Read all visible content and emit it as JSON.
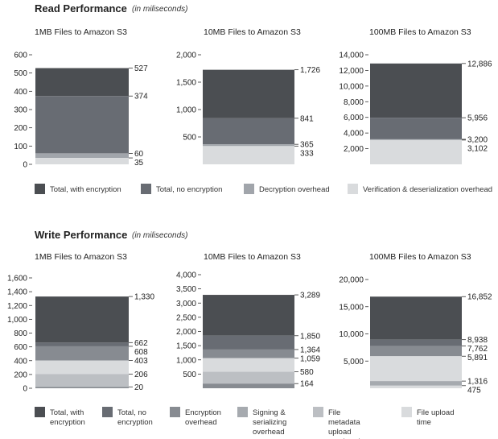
{
  "read": {
    "title": "Read Performance",
    "note": "(in miliseconds)",
    "legend": [
      {
        "label": "Total, with encryption",
        "color": "#4b4e52"
      },
      {
        "label": "Total, no encryption",
        "color": "#686c73"
      },
      {
        "label": "Decryption overhead",
        "color": "#a1a5ab"
      },
      {
        "label": "Verification & deserialization overhead",
        "color": "#d9dbdd"
      }
    ]
  },
  "write": {
    "title": "Write Performance",
    "note": "(in miliseconds)",
    "legend": [
      {
        "label": "Total, with encryption",
        "color": "#4b4e52"
      },
      {
        "label": "Total, no encryption",
        "color": "#686c73"
      },
      {
        "label": "Encryption overhead",
        "color": "#878b91"
      },
      {
        "label": "Signing & serializing overhead",
        "color": "#a6aaaf"
      },
      {
        "label": "File metadata upload overhead",
        "color": "#bcbfc3"
      },
      {
        "label": "File upload time",
        "color": "#d9dbdd"
      }
    ]
  },
  "chart_data": [
    {
      "type": "bar",
      "title": "1MB Files to Amazon S3",
      "group": "read",
      "ylim": [
        0,
        600
      ],
      "yticks": [
        0,
        100,
        200,
        300,
        400,
        500,
        600
      ],
      "ytick_labels": [
        "0",
        "100",
        "200",
        "300",
        "400",
        "500",
        "600"
      ],
      "bands": [
        {
          "series": "Total, with encryption",
          "from": 374,
          "to": 527,
          "color": "#4b4e52"
        },
        {
          "series": "Total, no encryption",
          "from": 60,
          "to": 374,
          "color": "#686c73"
        },
        {
          "series": "Decryption overhead",
          "from": 35,
          "to": 60,
          "color": "#a1a5ab"
        },
        {
          "series": "Verification & deserialization overhead",
          "from": 0,
          "to": 35,
          "color": "#d9dbdd"
        }
      ],
      "value_labels": [
        {
          "value": 527,
          "text": "527"
        },
        {
          "value": 374,
          "text": "374"
        },
        {
          "value": 60,
          "text": "60"
        },
        {
          "value": 35,
          "text": "35"
        }
      ]
    },
    {
      "type": "bar",
      "title": "10MB Files to Amazon S3",
      "group": "read",
      "ylim": [
        0,
        2000
      ],
      "yticks": [
        500,
        1000,
        1500,
        2000
      ],
      "ytick_labels": [
        "500",
        "1,000",
        "1,500",
        "2,000"
      ],
      "bands": [
        {
          "series": "Total, with encryption",
          "from": 841,
          "to": 1726,
          "color": "#4b4e52"
        },
        {
          "series": "Total, no encryption",
          "from": 365,
          "to": 841,
          "color": "#686c73"
        },
        {
          "series": "Decryption overhead",
          "from": 333,
          "to": 365,
          "color": "#a1a5ab"
        },
        {
          "series": "Verification & deserialization overhead",
          "from": 0,
          "to": 333,
          "color": "#d9dbdd"
        }
      ],
      "value_labels": [
        {
          "value": 1726,
          "text": "1,726"
        },
        {
          "value": 841,
          "text": "841"
        },
        {
          "value": 365,
          "text": "365"
        },
        {
          "value": 333,
          "text": "333"
        }
      ]
    },
    {
      "type": "bar",
      "title": "100MB Files to Amazon S3",
      "group": "read",
      "ylim": [
        0,
        14000
      ],
      "yticks": [
        2000,
        4000,
        6000,
        8000,
        10000,
        12000,
        14000
      ],
      "ytick_labels": [
        "2,000",
        "4,000",
        "6,000",
        "8,000",
        "10,000",
        "12,000",
        "14,000"
      ],
      "bands": [
        {
          "series": "Total, with encryption",
          "from": 5956,
          "to": 12886,
          "color": "#4b4e52"
        },
        {
          "series": "Total, no encryption",
          "from": 3200,
          "to": 5956,
          "color": "#686c73"
        },
        {
          "series": "Decryption overhead",
          "from": 3102,
          "to": 3200,
          "color": "#a1a5ab"
        },
        {
          "series": "Verification & deserialization overhead",
          "from": 0,
          "to": 3102,
          "color": "#d9dbdd"
        }
      ],
      "value_labels": [
        {
          "value": 12886,
          "text": "12,886"
        },
        {
          "value": 5956,
          "text": "5,956"
        },
        {
          "value": 3200,
          "text": "3,200"
        },
        {
          "value": 3102,
          "text": "3,102"
        }
      ]
    },
    {
      "type": "bar",
      "title": "1MB Files to Amazon S3",
      "group": "write",
      "ylim": [
        0,
        1600
      ],
      "yticks": [
        0,
        200,
        400,
        600,
        800,
        1000,
        1200,
        1400,
        1600
      ],
      "ytick_labels": [
        "0",
        "200",
        "400",
        "600",
        "800",
        "1,000",
        "1,200",
        "1,400",
        "1,600"
      ],
      "bands": [
        {
          "series": "Total, with encryption",
          "from": 662,
          "to": 1330,
          "color": "#4b4e52"
        },
        {
          "series": "Total, no encryption",
          "from": 608,
          "to": 662,
          "color": "#686c73"
        },
        {
          "series": "Encryption overhead",
          "from": 403,
          "to": 608,
          "color": "#878b91"
        },
        {
          "series": "Signing & serializing overhead",
          "from": 206,
          "to": 403,
          "color": "#d9dbdd"
        },
        {
          "series": "File metadata upload overhead",
          "from": 20,
          "to": 206,
          "color": "#bcbfc3"
        },
        {
          "series": "File upload time",
          "from": 0,
          "to": 20,
          "color": "#878b91"
        }
      ],
      "value_labels": [
        {
          "value": 1330,
          "text": "1,330"
        },
        {
          "value": 662,
          "text": "662"
        },
        {
          "value": 608,
          "text": "608"
        },
        {
          "value": 403,
          "text": "403"
        },
        {
          "value": 206,
          "text": "206"
        },
        {
          "value": 20,
          "text": "20"
        }
      ]
    },
    {
      "type": "bar",
      "title": "10MB Files to Amazon S3",
      "group": "write",
      "ylim": [
        0,
        4000
      ],
      "yticks": [
        500,
        1000,
        1500,
        2000,
        2500,
        3000,
        3500,
        4000
      ],
      "ytick_labels": [
        "500",
        "1,000",
        "1,500",
        "2,000",
        "2,500",
        "3,000",
        "3,500",
        "4,000"
      ],
      "bands": [
        {
          "series": "Total, with encryption",
          "from": 1850,
          "to": 3289,
          "color": "#4b4e52"
        },
        {
          "series": "Total, no encryption",
          "from": 1364,
          "to": 1850,
          "color": "#686c73"
        },
        {
          "series": "Encryption overhead",
          "from": 1059,
          "to": 1364,
          "color": "#878b91"
        },
        {
          "series": "Signing & serializing overhead",
          "from": 580,
          "to": 1059,
          "color": "#d9dbdd"
        },
        {
          "series": "File metadata upload overhead",
          "from": 164,
          "to": 580,
          "color": "#bcbfc3"
        },
        {
          "series": "File upload time",
          "from": 0,
          "to": 164,
          "color": "#878b91"
        }
      ],
      "value_labels": [
        {
          "value": 3289,
          "text": "3,289"
        },
        {
          "value": 1850,
          "text": "1,850"
        },
        {
          "value": 1364,
          "text": "1,364"
        },
        {
          "value": 1059,
          "text": "1,059"
        },
        {
          "value": 580,
          "text": "580"
        },
        {
          "value": 164,
          "text": "164"
        }
      ]
    },
    {
      "type": "bar",
      "title": "100MB Files to Amazon S3",
      "group": "write",
      "ylim": [
        0,
        20000
      ],
      "yticks": [
        5000,
        10000,
        15000,
        20000
      ],
      "ytick_labels": [
        "5,000",
        "10,000",
        "15,000",
        "20,000"
      ],
      "bands": [
        {
          "series": "Total, with encryption",
          "from": 8938,
          "to": 16852,
          "color": "#4b4e52"
        },
        {
          "series": "Total, no encryption",
          "from": 7762,
          "to": 8938,
          "color": "#686c73"
        },
        {
          "series": "Encryption overhead",
          "from": 5891,
          "to": 7762,
          "color": "#878b91"
        },
        {
          "series": "Signing & serializing overhead",
          "from": 1316,
          "to": 5891,
          "color": "#d9dbdd"
        },
        {
          "series": "File metadata upload overhead",
          "from": 475,
          "to": 1316,
          "color": "#a6aaaf"
        },
        {
          "series": "File upload time",
          "from": 0,
          "to": 475,
          "color": "#d9dbdd"
        }
      ],
      "value_labels": [
        {
          "value": 16852,
          "text": "16,852"
        },
        {
          "value": 8938,
          "text": "8,938"
        },
        {
          "value": 7762,
          "text": "7,762"
        },
        {
          "value": 5891,
          "text": "5,891"
        },
        {
          "value": 1316,
          "text": "1,316"
        },
        {
          "value": 475,
          "text": "475"
        }
      ]
    }
  ]
}
